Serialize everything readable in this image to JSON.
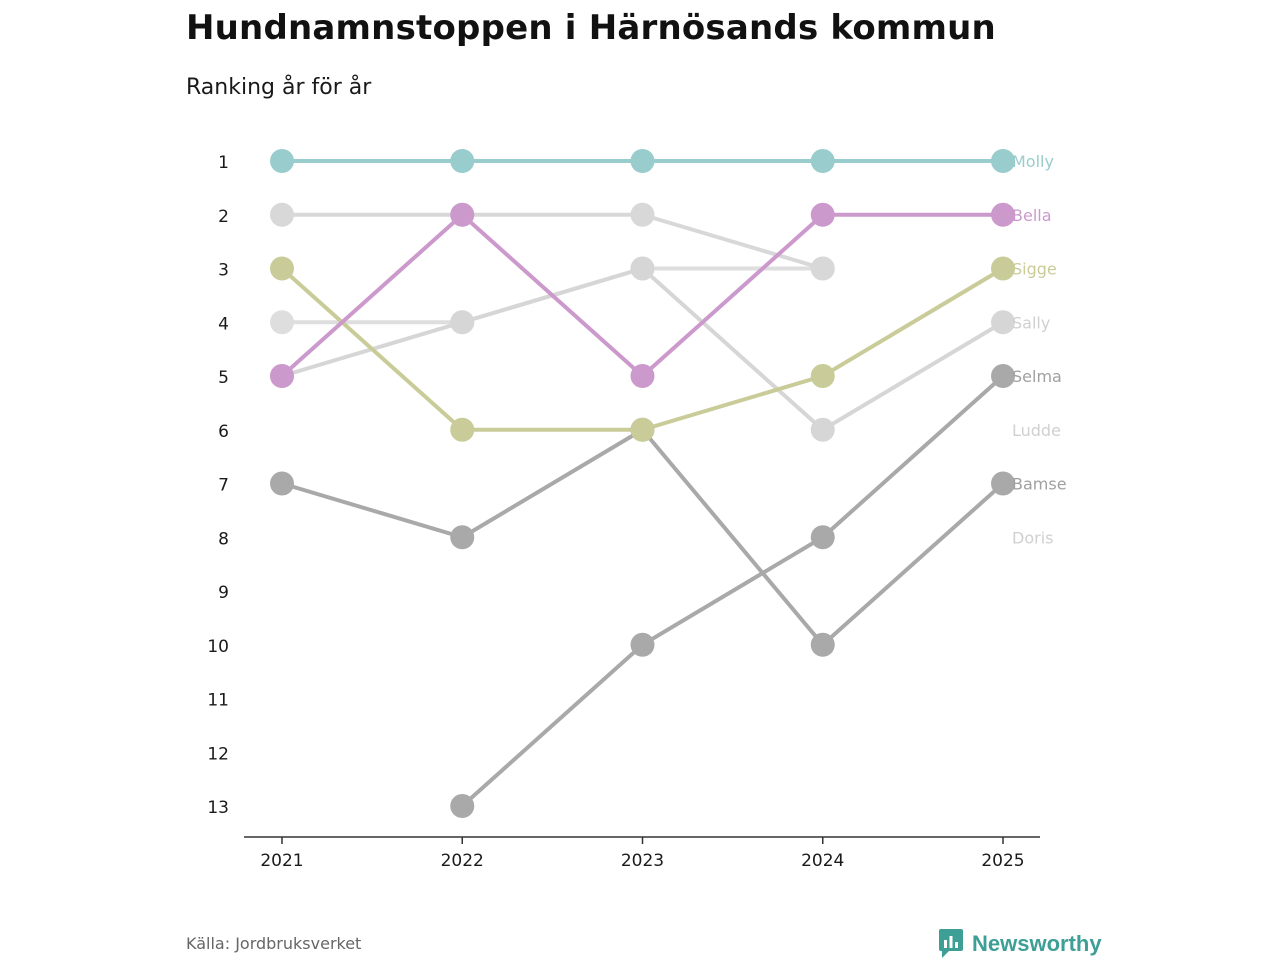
{
  "title": "Hundnamnstoppen i Härnösands kommun",
  "subtitle": "Ranking år för år",
  "source": "Källa: Jordbruksverket",
  "brand": "Newsworthy",
  "colors": {
    "accent": "#3d9f96",
    "axis": "#333333",
    "text": "#1a1a1a"
  },
  "chart_data": {
    "type": "line",
    "title": "Hundnamnstoppen i Härnösands kommun",
    "subtitle": "Ranking år för år",
    "xlabel": "",
    "ylabel": "",
    "categories": [
      "2021",
      "2022",
      "2023",
      "2024",
      "2025"
    ],
    "y_ticks": [
      1,
      2,
      3,
      4,
      5,
      6,
      7,
      8,
      9,
      10,
      11,
      12,
      13
    ],
    "ylim": [
      1,
      13
    ],
    "y_inverted": true,
    "grid": false,
    "legend": "direct labels at right end",
    "series": [
      {
        "name": "Doris",
        "color": "#dedede",
        "values": [
          4,
          4,
          3,
          3,
          null
        ]
      },
      {
        "name": "Ludde",
        "color": "#d8d8d8",
        "values": [
          2,
          2,
          2,
          3,
          null
        ]
      },
      {
        "name": "Sally",
        "color": "#d6d6d6",
        "values": [
          5,
          4,
          3,
          6,
          4
        ]
      },
      {
        "name": "Bamse",
        "color": "#a9a9a9",
        "values": [
          7,
          8,
          6,
          10,
          7
        ]
      },
      {
        "name": "Selma",
        "color": "#a9a9a9",
        "values": [
          null,
          13,
          10,
          8,
          5
        ]
      },
      {
        "name": "Sigge",
        "color": "#c9cc98",
        "values": [
          3,
          6,
          6,
          5,
          3
        ]
      },
      {
        "name": "Bella",
        "color": "#cc99cc",
        "values": [
          5,
          2,
          5,
          2,
          2
        ]
      },
      {
        "name": "Molly",
        "color": "#99cccc",
        "values": [
          1,
          1,
          1,
          1,
          1
        ]
      }
    ],
    "end_labels": [
      {
        "name": "Molly",
        "rank": 1,
        "color": "#99cccc"
      },
      {
        "name": "Bella",
        "rank": 2,
        "color": "#cc99cc"
      },
      {
        "name": "Sigge",
        "rank": 3,
        "color": "#c9cc98"
      },
      {
        "name": "Sally",
        "rank": 4,
        "color": "#d0d0d0"
      },
      {
        "name": "Selma",
        "rank": 5,
        "color": "#a0a0a0"
      },
      {
        "name": "Ludde",
        "rank": 6,
        "color": "#d0d0d0"
      },
      {
        "name": "Bamse",
        "rank": 7,
        "color": "#a0a0a0"
      },
      {
        "name": "Doris",
        "rank": 8,
        "color": "#d0d0d0"
      }
    ]
  }
}
